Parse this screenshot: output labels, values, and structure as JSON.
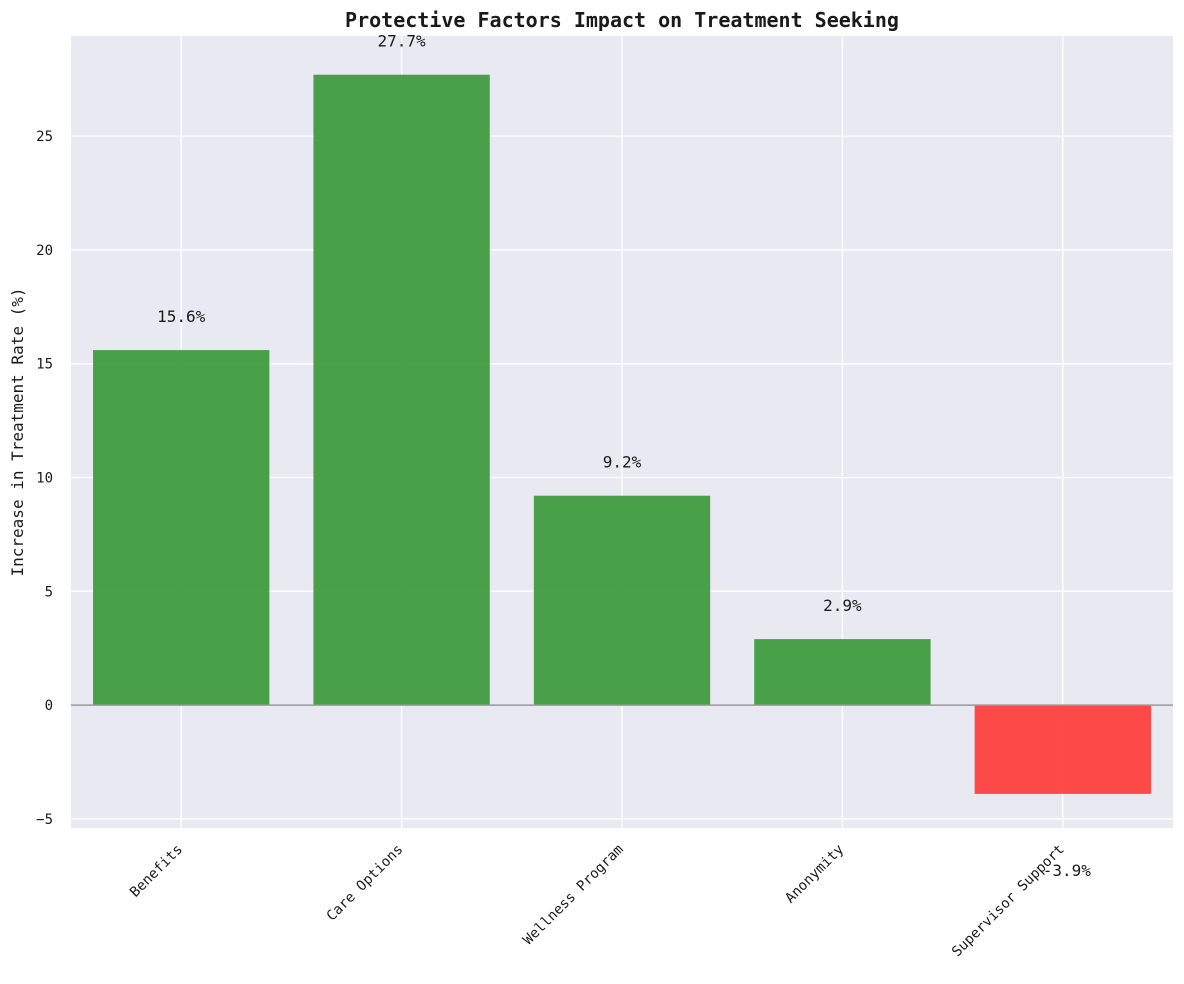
{
  "chart_data": {
    "type": "bar",
    "title": "Protective Factors Impact on Treatment Seeking",
    "xlabel": "",
    "ylabel": "Increase in Treatment Rate (%)",
    "categories": [
      "Benefits",
      "Care Options",
      "Wellness Program",
      "Anonymity",
      "Supervisor Support"
    ],
    "values": [
      15.6,
      27.7,
      9.2,
      2.9,
      -3.9
    ],
    "data_labels": [
      "15.6%",
      "27.7%",
      "9.2%",
      "2.9%",
      "-3.9%"
    ],
    "ylim": [
      -5.4,
      29.4
    ],
    "yticks": [
      -5,
      0,
      5,
      10,
      15,
      20,
      25
    ],
    "grid": true,
    "colors": {
      "positive": "#3a9a3a",
      "negative": "#ff3b3b",
      "plot_background": "#e9e9f2",
      "grid": "#ffffff",
      "zero_line": "#999999"
    }
  }
}
